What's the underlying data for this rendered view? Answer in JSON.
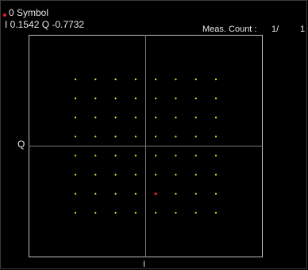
{
  "marker": {
    "symbol_label": "0 Symbol",
    "readout": "I 0.1542 Q -0.7732",
    "color": "#e8202a"
  },
  "measurement": {
    "label": "Meas. Count :",
    "value": "1/",
    "total": "1"
  },
  "axes": {
    "q_label": "Q",
    "i_label": "I"
  },
  "colors": {
    "background": "#000000",
    "frame": "#bdbdbd",
    "axis_lines": "#7a7a7a",
    "points": "#e8e020",
    "marker_point": "#e8202a"
  },
  "chart_data": {
    "type": "scatter",
    "title": "",
    "xlabel": "I",
    "ylabel": "Q",
    "xlim": [
      -1,
      1
    ],
    "ylim": [
      -1,
      1
    ],
    "grid": false,
    "levels": [
      -0.6,
      -0.4286,
      -0.2571,
      -0.0857,
      0.0857,
      0.2571,
      0.4286,
      0.6
    ],
    "series": [
      {
        "points_note_free": true,
        "points": "64-QAM constellation: all combinations of levels for I and Q"
      }
    ],
    "marker_point": {
      "i": 0.0857,
      "q": -0.4286
    }
  }
}
